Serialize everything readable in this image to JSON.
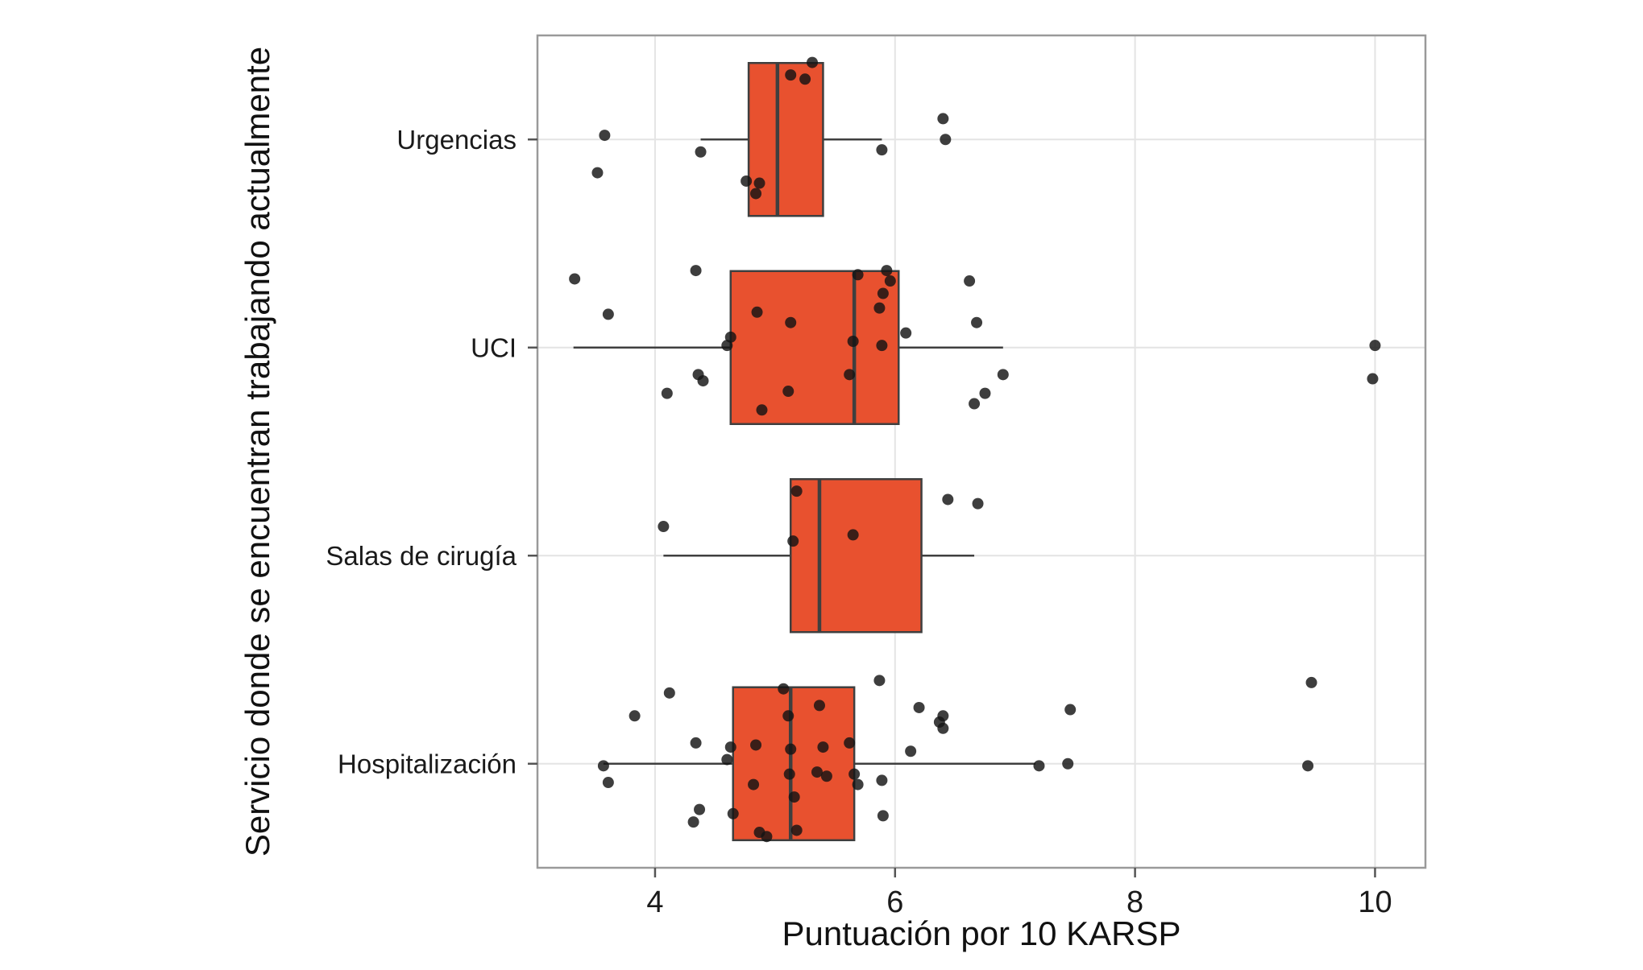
{
  "axes": {
    "x_title": "Puntuación por 10 KARSP",
    "y_title": "Servicio donde se encuentran trabajando actualmente"
  },
  "chart_data": {
    "type": "boxplot",
    "orientation": "horizontal",
    "title": "",
    "xlabel": "Puntuación por 10 KARSP",
    "ylabel": "Servicio donde se encuentran trabajando actualmente",
    "x_ticks": [
      4,
      6,
      8,
      10
    ],
    "xlim": [
      3.02,
      10.42
    ],
    "grid": true,
    "legend": false,
    "colors": {
      "box_fill": "#E8512F",
      "box_stroke": "#3F3F3F",
      "median": "#3F3F3F",
      "whisker": "#3F3F3F",
      "point": "#141414",
      "grid": "#E4E4E4",
      "panel_border": "#9A9A9A",
      "tick": "#555555",
      "text": "#1A1A1A"
    },
    "categories": [
      {
        "label": "Urgencias",
        "box": {
          "whisker_low": 4.38,
          "q1": 4.78,
          "median": 5.02,
          "q3": 5.4,
          "whisker_high": 5.89
        },
        "points": [
          [
            3.58,
            -0.02
          ],
          [
            3.52,
            0.16
          ],
          [
            4.38,
            0.06
          ],
          [
            4.76,
            0.2
          ],
          [
            4.84,
            0.26
          ],
          [
            4.87,
            0.21
          ],
          [
            5.13,
            -0.31
          ],
          [
            5.25,
            -0.29
          ],
          [
            5.31,
            -0.37
          ],
          [
            5.89,
            0.05
          ],
          [
            6.4,
            -0.1
          ],
          [
            6.42,
            0.0
          ]
        ]
      },
      {
        "label": "UCI",
        "box": {
          "whisker_low": 3.32,
          "q1": 4.63,
          "median": 5.66,
          "q3": 6.03,
          "whisker_high": 6.9
        },
        "points": [
          [
            3.33,
            -0.33
          ],
          [
            3.61,
            -0.16
          ],
          [
            4.1,
            0.22
          ],
          [
            4.34,
            -0.37
          ],
          [
            4.36,
            0.13
          ],
          [
            4.4,
            0.16
          ],
          [
            4.6,
            -0.01
          ],
          [
            4.63,
            -0.05
          ],
          [
            4.85,
            -0.17
          ],
          [
            4.89,
            0.3
          ],
          [
            5.13,
            -0.12
          ],
          [
            5.11,
            0.21
          ],
          [
            5.62,
            0.13
          ],
          [
            5.65,
            -0.03
          ],
          [
            5.69,
            -0.35
          ],
          [
            5.87,
            -0.19
          ],
          [
            5.89,
            -0.01
          ],
          [
            5.9,
            -0.26
          ],
          [
            5.93,
            -0.37
          ],
          [
            5.96,
            -0.32
          ],
          [
            6.09,
            -0.07
          ],
          [
            6.62,
            -0.32
          ],
          [
            6.68,
            -0.12
          ],
          [
            6.66,
            0.27
          ],
          [
            6.75,
            0.22
          ],
          [
            6.9,
            0.13
          ],
          [
            10.0,
            -0.01
          ],
          [
            9.98,
            0.15
          ]
        ]
      },
      {
        "label": "Salas de cirugía",
        "box": {
          "whisker_low": 4.07,
          "q1": 5.13,
          "median": 5.37,
          "q3": 6.22,
          "whisker_high": 6.66
        },
        "points": [
          [
            4.07,
            -0.14
          ],
          [
            5.18,
            -0.31
          ],
          [
            5.15,
            -0.07
          ],
          [
            5.65,
            -0.1
          ],
          [
            6.44,
            -0.27
          ],
          [
            6.69,
            -0.25
          ]
        ]
      },
      {
        "label": "Hospitalización",
        "box": {
          "whisker_low": 3.57,
          "q1": 4.65,
          "median": 5.13,
          "q3": 5.66,
          "whisker_high": 7.17
        },
        "points": [
          [
            3.57,
            0.01
          ],
          [
            3.61,
            0.09
          ],
          [
            3.83,
            -0.23
          ],
          [
            4.12,
            -0.34
          ],
          [
            4.34,
            -0.1
          ],
          [
            4.32,
            0.28
          ],
          [
            4.37,
            0.22
          ],
          [
            4.6,
            -0.02
          ],
          [
            4.63,
            -0.08
          ],
          [
            4.65,
            0.24
          ],
          [
            4.84,
            -0.09
          ],
          [
            4.82,
            0.1
          ],
          [
            4.87,
            0.33
          ],
          [
            4.93,
            0.35
          ],
          [
            5.07,
            -0.36
          ],
          [
            5.11,
            -0.23
          ],
          [
            5.13,
            -0.07
          ],
          [
            5.12,
            0.05
          ],
          [
            5.16,
            0.16
          ],
          [
            5.18,
            0.32
          ],
          [
            5.37,
            -0.28
          ],
          [
            5.4,
            -0.08
          ],
          [
            5.35,
            0.04
          ],
          [
            5.43,
            0.06
          ],
          [
            5.62,
            -0.1
          ],
          [
            5.66,
            0.05
          ],
          [
            5.69,
            0.1
          ],
          [
            5.87,
            -0.4
          ],
          [
            5.89,
            0.08
          ],
          [
            5.9,
            0.25
          ],
          [
            6.13,
            -0.06
          ],
          [
            6.2,
            -0.27
          ],
          [
            6.37,
            -0.2
          ],
          [
            6.4,
            -0.23
          ],
          [
            6.4,
            -0.17
          ],
          [
            7.2,
            0.01
          ],
          [
            7.44,
            0.0
          ],
          [
            7.46,
            -0.26
          ],
          [
            9.47,
            -0.39
          ],
          [
            9.44,
            0.01
          ]
        ]
      }
    ]
  }
}
